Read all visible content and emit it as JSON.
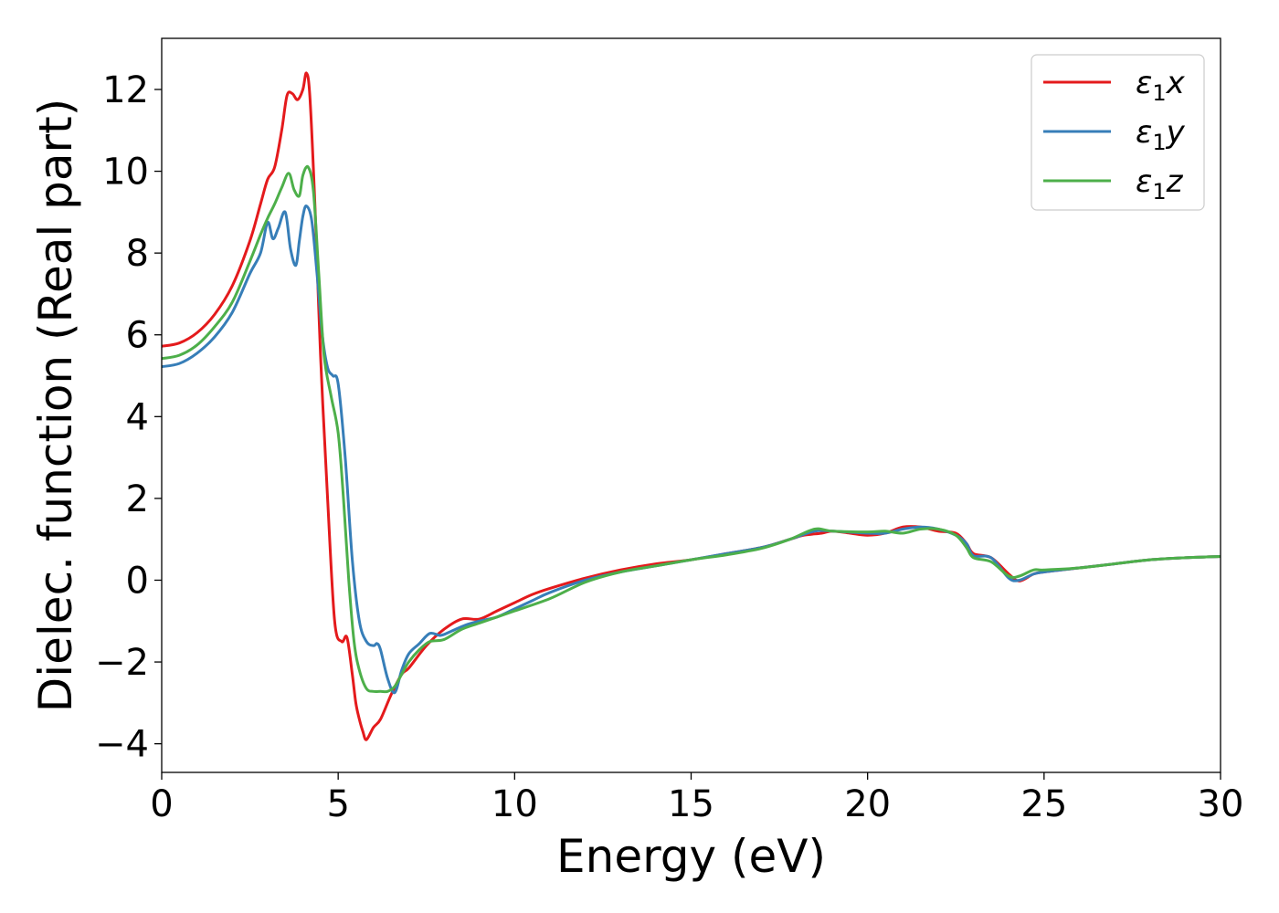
{
  "chart_data": {
    "type": "line",
    "title": "",
    "xlabel": "Energy (eV)",
    "ylabel": "Dielec. function (Real part)",
    "xlim": [
      0,
      30
    ],
    "ylim": [
      -4.7,
      13.25
    ],
    "xticks": [
      0,
      5,
      10,
      15,
      20,
      25,
      30
    ],
    "yticks": [
      -4,
      -2,
      0,
      2,
      4,
      6,
      8,
      10,
      12
    ],
    "ytick_labels": [
      "−4",
      "−2",
      "0",
      "2",
      "4",
      "6",
      "8",
      "10",
      "12"
    ],
    "grid": false,
    "legend_position": "top-right",
    "series": [
      {
        "name": "ε₁x",
        "legend_base": "ε",
        "legend_sub": "1",
        "legend_suffix": "x",
        "color": "#e41a1c",
        "x": [
          0,
          0.5,
          1,
          1.5,
          2,
          2.5,
          2.8,
          3.0,
          3.2,
          3.4,
          3.55,
          3.7,
          3.85,
          4.0,
          4.1,
          4.2,
          4.35,
          4.5,
          4.7,
          4.9,
          5.1,
          5.25,
          5.4,
          5.5,
          5.6,
          5.7,
          5.8,
          6.0,
          6.2,
          6.5,
          6.8,
          7.0,
          7.5,
          8.0,
          8.5,
          9.0,
          9.5,
          10.0,
          10.5,
          11.0,
          12.0,
          13.0,
          14.0,
          15.0,
          16.0,
          17.0,
          17.8,
          18.2,
          18.7,
          19.0,
          19.5,
          20.0,
          20.5,
          21.0,
          21.5,
          22.0,
          22.5,
          22.8,
          23.0,
          23.5,
          24.0,
          24.3,
          24.7,
          25.0,
          26.0,
          27.0,
          28.0,
          29.0,
          30.0
        ],
        "y": [
          5.72,
          5.8,
          6.05,
          6.5,
          7.2,
          8.3,
          9.2,
          9.8,
          10.1,
          11.0,
          11.85,
          11.9,
          11.75,
          12.0,
          12.4,
          11.8,
          9.0,
          5.5,
          2.0,
          -1.0,
          -1.5,
          -1.4,
          -2.3,
          -3.0,
          -3.4,
          -3.7,
          -3.9,
          -3.6,
          -3.4,
          -2.8,
          -2.3,
          -2.15,
          -1.6,
          -1.2,
          -0.95,
          -0.95,
          -0.75,
          -0.55,
          -0.35,
          -0.2,
          0.05,
          0.25,
          0.4,
          0.5,
          0.65,
          0.8,
          1.0,
          1.1,
          1.15,
          1.2,
          1.15,
          1.1,
          1.15,
          1.3,
          1.3,
          1.2,
          1.15,
          0.9,
          0.65,
          0.55,
          0.15,
          -0.02,
          0.15,
          0.2,
          0.3,
          0.4,
          0.5,
          0.55,
          0.58
        ]
      },
      {
        "name": "ε₁y",
        "legend_base": "ε",
        "legend_sub": "1",
        "legend_suffix": "y",
        "color": "#377eb8",
        "x": [
          0,
          0.5,
          1,
          1.5,
          2,
          2.5,
          2.8,
          3.0,
          3.15,
          3.3,
          3.5,
          3.65,
          3.8,
          3.9,
          4.0,
          4.1,
          4.25,
          4.4,
          4.55,
          4.7,
          4.85,
          5.0,
          5.2,
          5.4,
          5.6,
          5.8,
          6.0,
          6.1,
          6.2,
          6.4,
          6.6,
          6.8,
          7.0,
          7.3,
          7.6,
          7.9,
          8.2,
          8.6,
          9.0,
          9.5,
          10.0,
          10.5,
          11.0,
          12.0,
          13.0,
          14.0,
          15.0,
          16.0,
          17.0,
          17.8,
          18.5,
          19.0,
          20.0,
          20.5,
          21.0,
          21.5,
          22.0,
          22.5,
          22.8,
          23.0,
          23.5,
          24.0,
          24.3,
          24.7,
          25.0,
          26.0,
          27.0,
          28.0,
          29.0,
          30.0
        ],
        "y": [
          5.22,
          5.3,
          5.55,
          5.95,
          6.55,
          7.5,
          8.0,
          8.75,
          8.35,
          8.6,
          9.0,
          8.1,
          7.7,
          8.3,
          8.9,
          9.15,
          8.8,
          7.5,
          6.0,
          5.2,
          5.0,
          4.8,
          3.0,
          0.5,
          -1.0,
          -1.5,
          -1.6,
          -1.55,
          -1.7,
          -2.4,
          -2.75,
          -2.2,
          -1.8,
          -1.55,
          -1.3,
          -1.35,
          -1.25,
          -1.1,
          -1.0,
          -0.9,
          -0.7,
          -0.5,
          -0.3,
          0.0,
          0.2,
          0.35,
          0.5,
          0.65,
          0.8,
          1.0,
          1.2,
          1.2,
          1.15,
          1.15,
          1.25,
          1.3,
          1.25,
          1.1,
          0.9,
          0.6,
          0.55,
          0.05,
          0.0,
          0.15,
          0.2,
          0.3,
          0.4,
          0.5,
          0.55,
          0.58
        ]
      },
      {
        "name": "ε₁z",
        "legend_base": "ε",
        "legend_sub": "1",
        "legend_suffix": "z",
        "color": "#4daf4a",
        "x": [
          0,
          0.5,
          1,
          1.5,
          2,
          2.5,
          2.8,
          3.0,
          3.2,
          3.4,
          3.6,
          3.75,
          3.9,
          4.0,
          4.15,
          4.3,
          4.45,
          4.6,
          4.8,
          5.0,
          5.15,
          5.3,
          5.45,
          5.6,
          5.8,
          6.0,
          6.2,
          6.4,
          6.6,
          6.8,
          7.0,
          7.3,
          7.6,
          8.0,
          8.5,
          9.0,
          9.5,
          10.0,
          11.0,
          12.0,
          13.0,
          14.0,
          15.0,
          16.0,
          17.0,
          17.8,
          18.5,
          19.0,
          20.0,
          20.5,
          21.0,
          21.5,
          22.0,
          22.5,
          22.8,
          23.0,
          23.5,
          24.0,
          24.3,
          24.7,
          25.0,
          26.0,
          27.0,
          28.0,
          29.0,
          30.0
        ],
        "y": [
          5.42,
          5.5,
          5.75,
          6.2,
          6.8,
          7.8,
          8.45,
          8.85,
          9.2,
          9.6,
          9.95,
          9.55,
          9.4,
          9.9,
          10.1,
          9.5,
          7.5,
          5.5,
          4.5,
          3.6,
          2.0,
          0.0,
          -1.5,
          -2.2,
          -2.65,
          -2.72,
          -2.72,
          -2.72,
          -2.6,
          -2.3,
          -2.0,
          -1.7,
          -1.5,
          -1.45,
          -1.2,
          -1.05,
          -0.9,
          -0.75,
          -0.45,
          -0.05,
          0.2,
          0.35,
          0.5,
          0.62,
          0.78,
          1.0,
          1.25,
          1.2,
          1.18,
          1.2,
          1.15,
          1.25,
          1.25,
          1.1,
          0.8,
          0.55,
          0.45,
          0.1,
          0.1,
          0.25,
          0.25,
          0.3,
          0.4,
          0.5,
          0.55,
          0.58
        ]
      }
    ]
  }
}
